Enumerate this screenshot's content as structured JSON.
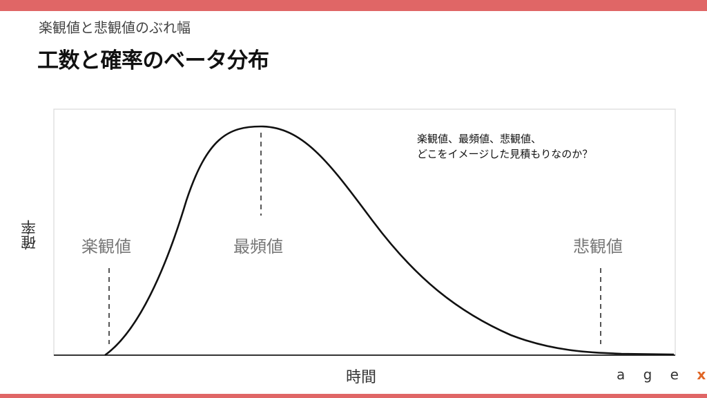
{
  "header": {
    "subtitle": "楽観値と悲観値のぶれ幅",
    "title": "工数と確率のベータ分布"
  },
  "chart_data": {
    "type": "line",
    "xlabel": "時間",
    "ylabel": "確率",
    "markers": [
      {
        "label": "楽観値"
      },
      {
        "label": "最頻値"
      },
      {
        "label": "悲観値"
      }
    ]
  },
  "note": {
    "line1": "楽観値、最頻値、悲観値、",
    "line2": "どこをイメージした見積もりなのか？"
  },
  "logo": {
    "letters": "a g e",
    "x": "x"
  },
  "colors": {
    "accent_bar": "#e06666",
    "logo_x": "#e06626"
  }
}
